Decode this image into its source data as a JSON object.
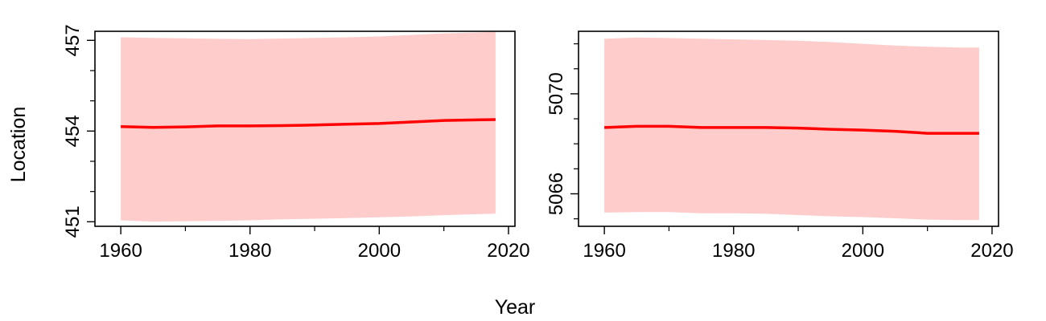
{
  "figure": {
    "xlabel": "Year",
    "ylabel": "Location"
  },
  "colors": {
    "line": "#ff0000",
    "band": "#ffcccc",
    "frame": "#000000"
  },
  "chart_data": [
    {
      "type": "line",
      "title": "",
      "xlim": [
        1956,
        2021
      ],
      "ylim": [
        450.85,
        457.3
      ],
      "xticks": [
        1960,
        1980,
        2000,
        2020
      ],
      "xminor": [
        1970,
        1990,
        2010
      ],
      "yticks": [
        451,
        454,
        457
      ],
      "yminor": [
        452,
        453,
        455,
        456
      ],
      "x": [
        1960,
        1965,
        1970,
        1975,
        1980,
        1985,
        1990,
        1995,
        2000,
        2005,
        2010,
        2015,
        2018
      ],
      "y": [
        454.15,
        454.12,
        454.14,
        454.17,
        454.17,
        454.18,
        454.2,
        454.23,
        454.25,
        454.3,
        454.35,
        454.37,
        454.38
      ],
      "lower": [
        451.05,
        451.0,
        451.02,
        451.03,
        451.05,
        451.08,
        451.1,
        451.12,
        451.15,
        451.18,
        451.22,
        451.25,
        451.27
      ],
      "upper": [
        457.1,
        457.08,
        457.07,
        457.05,
        457.04,
        457.06,
        457.08,
        457.1,
        457.13,
        457.18,
        457.23,
        457.26,
        457.28
      ]
    },
    {
      "type": "line",
      "title": "",
      "xlim": [
        1956,
        2021
      ],
      "ylim": [
        5064.7,
        5072.5
      ],
      "xticks": [
        1960,
        1980,
        2000,
        2020
      ],
      "xminor": [
        1970,
        1990,
        2010
      ],
      "yticks": [
        5066,
        5070
      ],
      "yminor": [
        5065,
        5067,
        5068,
        5069,
        5071,
        5072
      ],
      "x": [
        1960,
        1965,
        1970,
        1975,
        1980,
        1985,
        1990,
        1995,
        2000,
        2005,
        2010,
        2015,
        2018
      ],
      "y": [
        5068.65,
        5068.7,
        5068.7,
        5068.65,
        5068.65,
        5068.65,
        5068.63,
        5068.58,
        5068.55,
        5068.5,
        5068.42,
        5068.42,
        5068.42
      ],
      "lower": [
        5065.25,
        5065.27,
        5065.27,
        5065.22,
        5065.22,
        5065.2,
        5065.15,
        5065.1,
        5065.07,
        5065.02,
        5064.97,
        5064.95,
        5064.95
      ],
      "upper": [
        5072.2,
        5072.25,
        5072.23,
        5072.2,
        5072.18,
        5072.15,
        5072.12,
        5072.07,
        5072.0,
        5071.93,
        5071.88,
        5071.85,
        5071.85
      ]
    }
  ]
}
